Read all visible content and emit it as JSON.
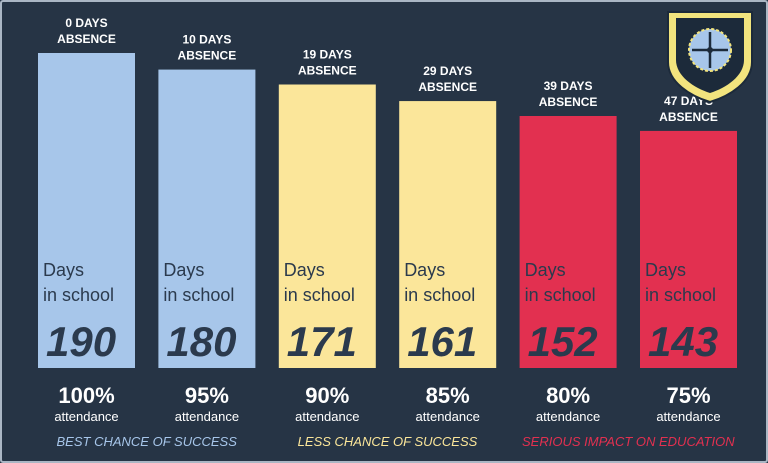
{
  "chart_data": {
    "type": "bar",
    "title": "",
    "xlabel": "",
    "ylabel": "",
    "ylim": [
      0,
      190
    ],
    "grid": false,
    "legend": "none",
    "categories": [
      "0 DAYS ABSENCE",
      "10 DAYS ABSENCE",
      "19 DAYS ABSENCE",
      "29 DAYS ABSENCE",
      "39 DAYS ABSENCE",
      "47 DAYS ABSENCE"
    ],
    "bars": [
      {
        "absence_line1": "0 DAYS",
        "absence_line2": "ABSENCE",
        "days_line1": "Days",
        "days_line2": "in school",
        "value": 190,
        "value_label": "190",
        "percent": "100%",
        "attendance": "attendance",
        "color": "#a7c6ea"
      },
      {
        "absence_line1": "10 DAYS",
        "absence_line2": "ABSENCE",
        "days_line1": "Days",
        "days_line2": "in school",
        "value": 180,
        "value_label": "180",
        "percent": "95%",
        "attendance": "attendance",
        "color": "#a7c6ea"
      },
      {
        "absence_line1": "19 DAYS",
        "absence_line2": "ABSENCE",
        "days_line1": "Days",
        "days_line2": "in school",
        "value": 171,
        "value_label": "171",
        "percent": "90%",
        "attendance": "attendance",
        "color": "#fbe69a"
      },
      {
        "absence_line1": "29 DAYS",
        "absence_line2": "ABSENCE",
        "days_line1": "Days",
        "days_line2": "in school",
        "value": 161,
        "value_label": "161",
        "percent": "85%",
        "attendance": "attendance",
        "color": "#fbe69a"
      },
      {
        "absence_line1": "39 DAYS",
        "absence_line2": "ABSENCE",
        "days_line1": "Days",
        "days_line2": "in school",
        "value": 152,
        "value_label": "152",
        "percent": "80%",
        "attendance": "attendance",
        "color": "#e23050"
      },
      {
        "absence_line1": "47 DAYS",
        "absence_line2": "ABSENCE",
        "days_line1": "Days",
        "days_line2": "in school",
        "value": 143,
        "value_label": "143",
        "percent": "75%",
        "attendance": "attendance",
        "color": "#e23050"
      }
    ],
    "categories_footer": [
      {
        "label": "BEST CHANCE OF SUCCESS",
        "color": "#a7c6ea"
      },
      {
        "label": "LESS CHANCE OF SUCCESS",
        "color": "#fbe69a"
      },
      {
        "label": "SERIOUS IMPACT ON EDUCATION",
        "color": "#e23050"
      }
    ]
  },
  "crest": {
    "icon": "school-crest-icon",
    "shield_color": "#f2e47e",
    "inner_color": "#a7c6ea",
    "outline_color": "#1c2a3a"
  }
}
